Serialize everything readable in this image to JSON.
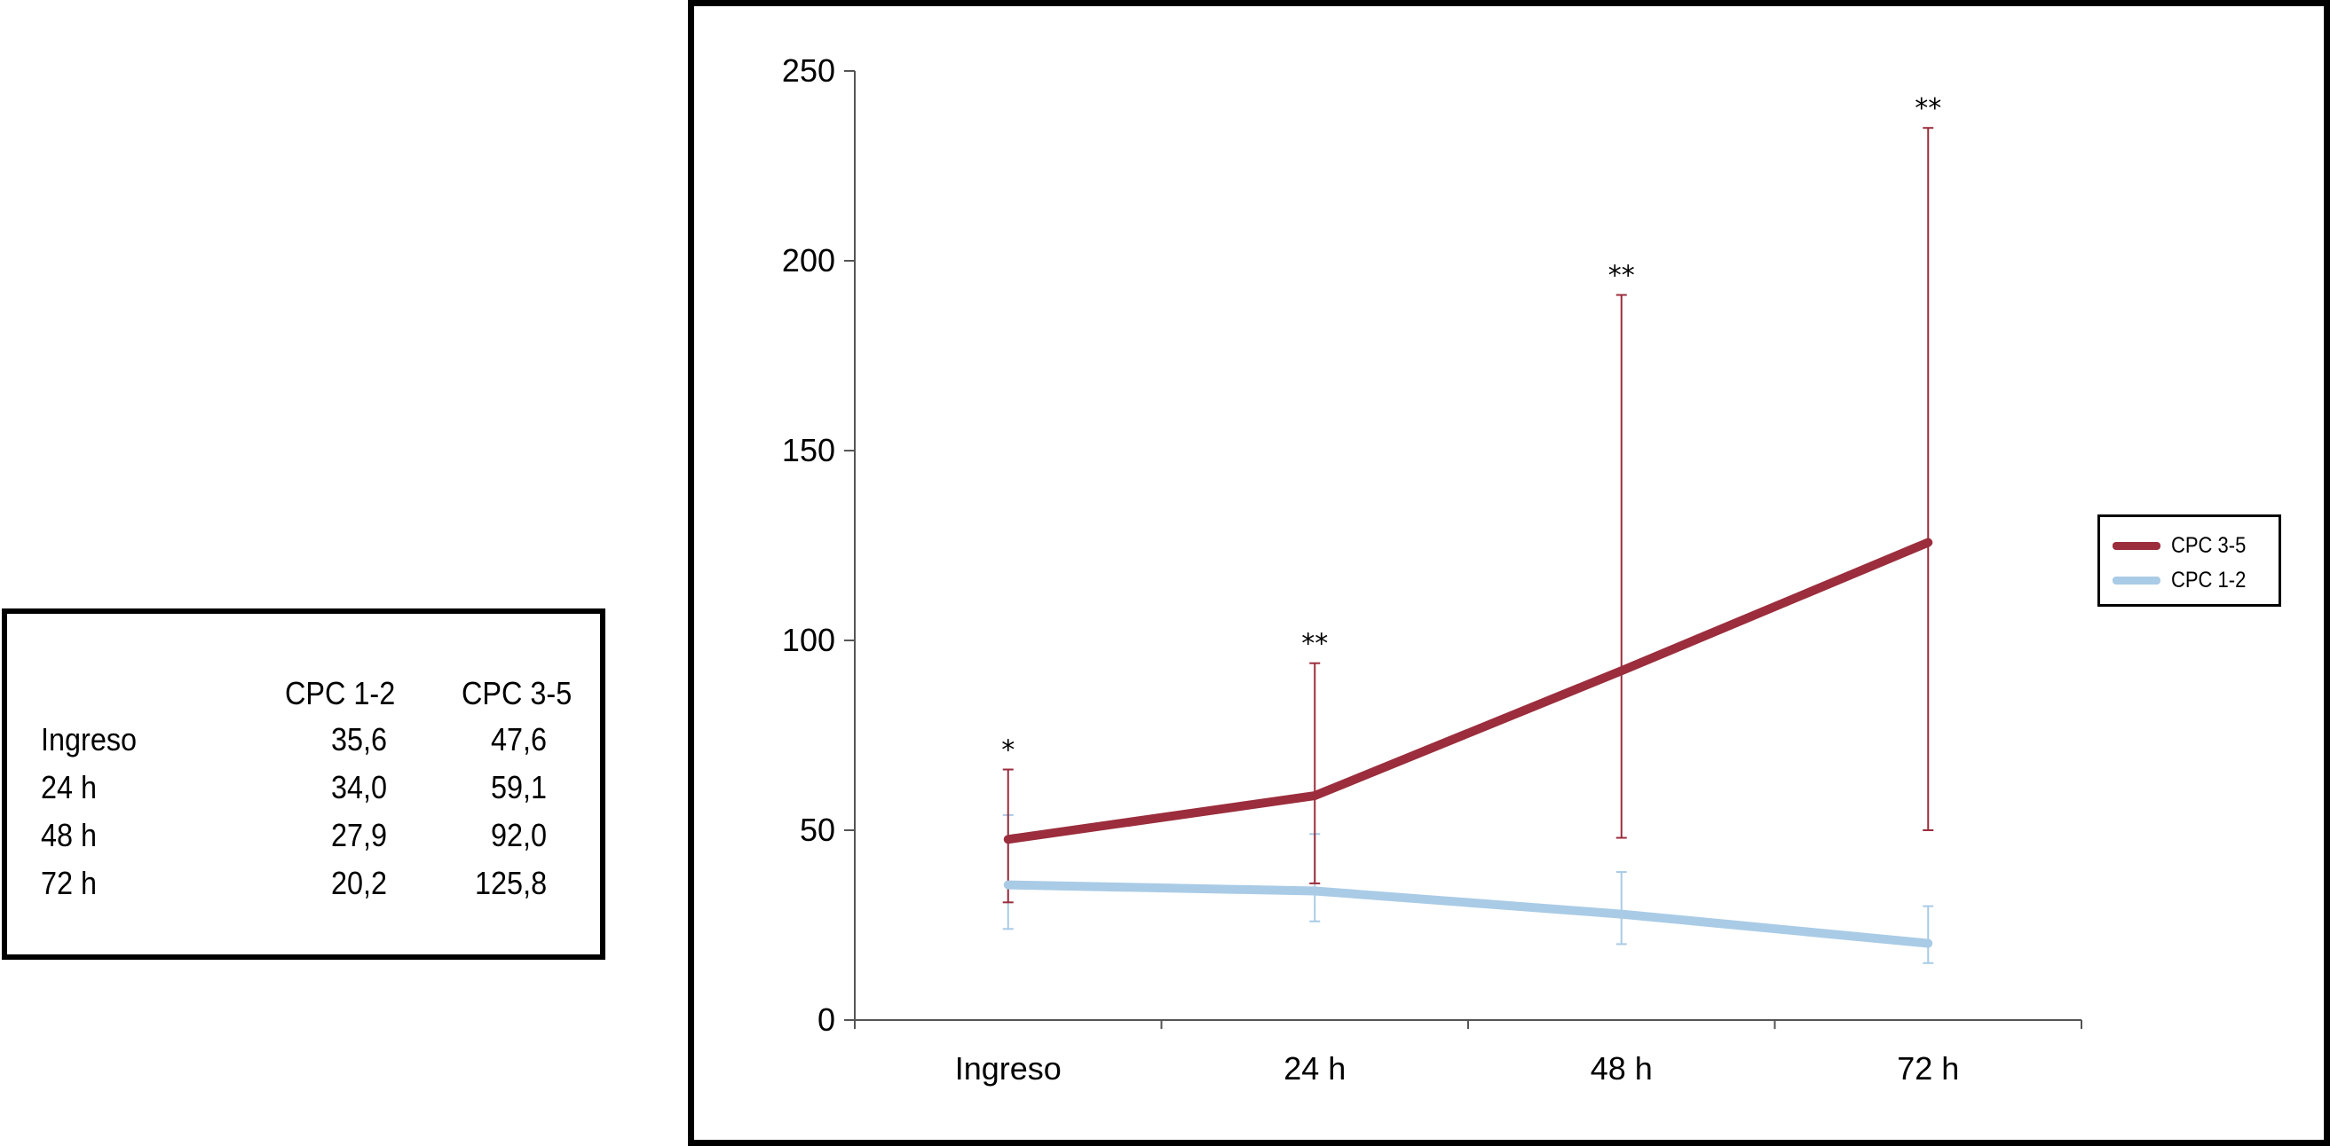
{
  "table": {
    "headers": [
      "CPC 1-2",
      "CPC 3-5"
    ],
    "rows": [
      {
        "label": "Ingreso",
        "cpc12": "35,6",
        "cpc35": "47,6"
      },
      {
        "label": "24 h",
        "cpc12": "34,0",
        "cpc35": "59,1"
      },
      {
        "label": "48 h",
        "cpc12": "27,9",
        "cpc35": "92,0"
      },
      {
        "label": "72 h",
        "cpc12": "20,2",
        "cpc35": "125,8"
      }
    ]
  },
  "chart_data": {
    "type": "line",
    "title": "",
    "xlabel": "",
    "ylabel": "",
    "categories": [
      "Ingreso",
      "24 h",
      "48 h",
      "72 h"
    ],
    "ylim": [
      0,
      250
    ],
    "yticks": [
      "0",
      "50",
      "100",
      "150",
      "200",
      "250"
    ],
    "grid": false,
    "legend_position": "right",
    "series": [
      {
        "name": "CPC 3-5",
        "color": "#9b2d3c",
        "values": [
          47.6,
          59.1,
          92.0,
          125.8
        ],
        "error_upper": [
          66,
          94,
          191,
          235
        ],
        "error_lower": [
          31,
          36,
          48,
          50
        ]
      },
      {
        "name": "CPC 1-2",
        "color": "#a9cbe6",
        "values": [
          35.6,
          34.0,
          27.9,
          20.2
        ],
        "error_upper": [
          54,
          49,
          39,
          30
        ],
        "error_lower": [
          24,
          26,
          20,
          15
        ]
      }
    ],
    "annotations": [
      {
        "category": "Ingreso",
        "text": "*",
        "y": 66
      },
      {
        "category": "24 h",
        "text": "**",
        "y": 94
      },
      {
        "category": "48 h",
        "text": "**",
        "y": 191
      },
      {
        "category": "72 h",
        "text": "**",
        "y": 235
      }
    ]
  }
}
